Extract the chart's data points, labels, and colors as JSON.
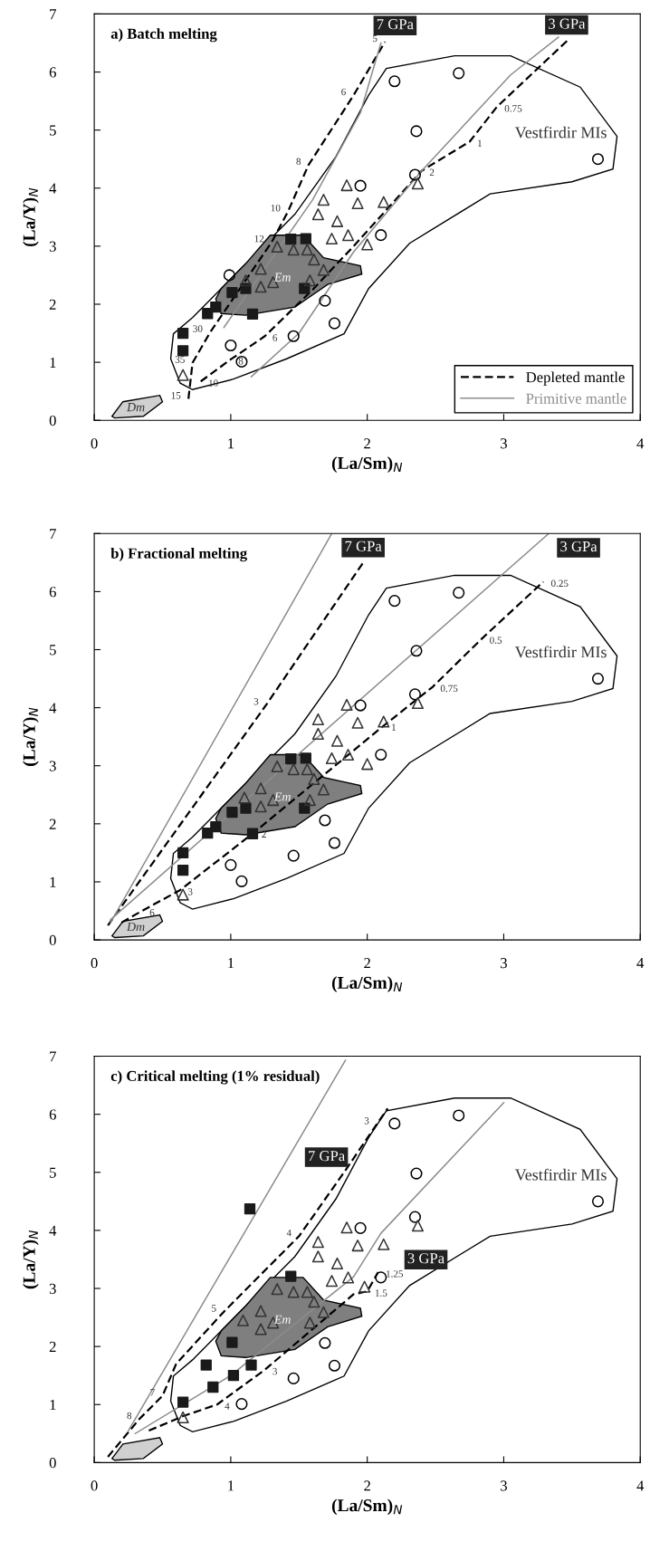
{
  "chart_data": [
    {
      "type": "scatter",
      "title": "a) Batch melting",
      "xlabel": "(La/Sm)$_{N}$",
      "ylabel": "(La/Y)$_{N}$",
      "xlim": [
        0,
        4
      ],
      "ylim": [
        0,
        7
      ],
      "xticks": [
        0,
        1,
        2,
        3,
        4
      ],
      "yticks": [
        0,
        1,
        2,
        3,
        4,
        5,
        6,
        7
      ],
      "legend": "bottom right",
      "series": [
        {
          "type": "area",
          "name": "Vestfirdir MIs",
          "color": "#ffffff",
          "x": [
            0.63,
            0.56,
            0.58,
            0.72,
            1.17,
            1.47,
            1.77,
            2.01,
            2.14,
            2.64,
            3.05,
            3.56,
            3.83,
            3.8,
            3.5,
            2.9,
            2.31,
            2.01,
            1.83,
            1.41,
            1.02,
            0.72,
            0.63
          ],
          "values": [
            0.64,
            1.06,
            1.49,
            1.77,
            2.84,
            3.55,
            4.54,
            5.6,
            6.06,
            6.28,
            6.28,
            5.74,
            4.89,
            4.33,
            4.11,
            3.9,
            3.05,
            2.27,
            1.49,
            1.06,
            0.71,
            0.53,
            0.64
          ]
        },
        {
          "type": "area",
          "name": "Em",
          "color": "#7f7f7f",
          "x": [
            0.93,
            1.11,
            1.29,
            1.53,
            1.68,
            1.95,
            1.96,
            1.71,
            1.47,
            1.11,
            0.93,
            0.89,
            0.93
          ],
          "values": [
            2.27,
            2.7,
            3.19,
            3.19,
            2.8,
            2.66,
            2.52,
            2.34,
            1.95,
            1.81,
            1.84,
            2.09,
            2.27
          ]
        },
        {
          "type": "area",
          "name": "Dm",
          "color": "#d0d0d0",
          "x": [
            0.13,
            0.21,
            0.48,
            0.5,
            0.36,
            0.15,
            0.13
          ],
          "values": [
            0.07,
            0.32,
            0.43,
            0.32,
            0.07,
            0.04,
            0.07
          ]
        },
        {
          "type": "line",
          "name": "Depleted mantle",
          "color": "#000000",
          "line_style": "dashed",
          "x": [
            0.69,
            0.72,
            0.85,
            1.3,
            1.42,
            1.57,
            1.9,
            2.13
          ],
          "values": [
            0.37,
            0.99,
            1.52,
            3.07,
            3.6,
            4.4,
            5.6,
            6.52
          ]
        },
        {
          "type": "line",
          "color": "#000000",
          "line_style": "dashed",
          "x": [
            0.78,
            1.0,
            1.25,
            1.6,
            1.9,
            2.4,
            2.75,
            2.95,
            3.47
          ],
          "values": [
            0.67,
            1.05,
            1.45,
            2.25,
            3.0,
            4.3,
            4.8,
            5.4,
            6.55
          ]
        },
        {
          "type": "line",
          "name": "Primitive mantle",
          "color": "#8c8c8c",
          "line_style": "solid",
          "x": [
            0.95,
            1.6,
            1.95,
            2.1
          ],
          "values": [
            1.6,
            3.8,
            5.3,
            6.5
          ]
        },
        {
          "type": "line",
          "color": "#8c8c8c",
          "line_style": "solid",
          "x": [
            1.15,
            1.5,
            1.9,
            2.4,
            3.05,
            3.4
          ],
          "values": [
            0.75,
            1.5,
            2.9,
            4.3,
            5.95,
            6.6
          ]
        },
        {
          "type": "scatter",
          "marker": "circle",
          "color": "#000000",
          "x": [
            2.2,
            2.67,
            2.36,
            3.69,
            2.35,
            1.95,
            2.1,
            1.69,
            1.76,
            1.46,
            1.0,
            1.08,
            0.99
          ],
          "values": [
            5.84,
            5.98,
            4.98,
            4.5,
            4.23,
            4.04,
            3.19,
            2.06,
            1.67,
            1.45,
            1.29,
            1.01,
            2.5
          ]
        },
        {
          "type": "scatter",
          "marker": "triangle",
          "color": "#333333",
          "x": [
            1.85,
            1.93,
            2.12,
            1.68,
            1.64,
            1.78,
            1.74,
            1.86,
            2.0,
            2.37,
            1.34,
            1.46,
            1.56,
            1.61,
            1.68,
            1.22,
            1.31,
            1.22,
            1.11,
            1.58,
            0.65
          ],
          "values": [
            4.05,
            3.74,
            3.76,
            3.8,
            3.55,
            3.43,
            3.13,
            3.19,
            3.03,
            4.08,
            2.99,
            2.94,
            2.94,
            2.77,
            2.59,
            2.61,
            2.38,
            2.3,
            2.41,
            2.41,
            0.78
          ]
        },
        {
          "type": "scatter",
          "marker": "square",
          "color": "#1a1a1a",
          "x": [
            1.55,
            1.44,
            1.01,
            1.11,
            0.83,
            0.89,
            1.16,
            0.65,
            0.65,
            1.54
          ],
          "values": [
            3.13,
            3.12,
            2.2,
            2.27,
            1.84,
            1.95,
            1.83,
            1.5,
            1.2,
            2.27
          ]
        }
      ],
      "annotations": [
        {
          "text": "7 GPa",
          "x": 2.13,
          "y": 6.52
        },
        {
          "text": "3 GPa",
          "x": 3.47,
          "y": 6.55
        },
        {
          "text": "15",
          "x": 0.69,
          "y": 0.37
        },
        {
          "text": "35",
          "x": 0.72,
          "y": 0.99
        },
        {
          "text": "30",
          "x": 0.85,
          "y": 1.52
        },
        {
          "text": "12",
          "x": 1.3,
          "y": 3.07
        },
        {
          "text": "10",
          "x": 1.42,
          "y": 3.6
        },
        {
          "text": "8",
          "x": 1.57,
          "y": 4.4
        },
        {
          "text": "6",
          "x": 1.9,
          "y": 5.6
        },
        {
          "text": "5",
          "x": 2.13,
          "y": 6.52
        },
        {
          "text": "10",
          "x": 0.78,
          "y": 0.67
        },
        {
          "text": "8",
          "x": 1.0,
          "y": 1.05
        },
        {
          "text": "6",
          "x": 1.25,
          "y": 1.45
        },
        {
          "text": "2",
          "x": 2.4,
          "y": 4.3
        },
        {
          "text": "1",
          "x": 2.75,
          "y": 4.8
        },
        {
          "text": "0.75",
          "x": 2.95,
          "y": 5.4
        }
      ]
    },
    {
      "type": "scatter",
      "title": "b) Fractional melting",
      "xlabel": "(La/Sm)$_{N}$",
      "ylabel": "(La/Y)$_{N}$",
      "xlim": [
        0,
        4
      ],
      "ylim": [
        0,
        7
      ],
      "xticks": [
        0,
        1,
        2,
        3,
        4
      ],
      "yticks": [
        0,
        1,
        2,
        3,
        4,
        5,
        6,
        7
      ],
      "series": [
        {
          "type": "area",
          "name": "Vestfirdir MIs",
          "color": "#ffffff",
          "x": [
            0.63,
            0.56,
            0.58,
            0.72,
            1.17,
            1.47,
            1.77,
            2.01,
            2.14,
            2.64,
            3.05,
            3.56,
            3.83,
            3.8,
            3.5,
            2.9,
            2.31,
            2.01,
            1.83,
            1.41,
            1.02,
            0.72,
            0.63
          ],
          "values": [
            0.64,
            1.06,
            1.49,
            1.77,
            2.84,
            3.55,
            4.54,
            5.6,
            6.06,
            6.28,
            6.28,
            5.74,
            4.89,
            4.33,
            4.11,
            3.9,
            3.05,
            2.27,
            1.49,
            1.06,
            0.71,
            0.53,
            0.64
          ]
        },
        {
          "type": "area",
          "name": "Em",
          "color": "#7f7f7f",
          "x": [
            0.93,
            1.11,
            1.29,
            1.53,
            1.68,
            1.95,
            1.96,
            1.71,
            1.47,
            1.11,
            0.93,
            0.89,
            0.93
          ],
          "values": [
            2.27,
            2.7,
            3.19,
            3.19,
            2.8,
            2.66,
            2.52,
            2.34,
            1.95,
            1.81,
            1.84,
            2.09,
            2.27
          ]
        },
        {
          "type": "area",
          "name": "Dm",
          "color": "#d0d0d0",
          "x": [
            0.13,
            0.21,
            0.48,
            0.5,
            0.36,
            0.15,
            0.13
          ],
          "values": [
            0.07,
            0.32,
            0.43,
            0.32,
            0.07,
            0.04,
            0.07
          ]
        },
        {
          "type": "line",
          "color": "#000000",
          "line_style": "dashed",
          "x": [
            0.1,
            1.26,
            1.97
          ],
          "values": [
            0.25,
            4.05,
            6.5
          ]
        },
        {
          "type": "line",
          "color": "#000000",
          "line_style": "dashed",
          "x": [
            0.2,
            0.35,
            0.63,
            1.17,
            2.12,
            2.48,
            2.84,
            3.29
          ],
          "values": [
            0.3,
            0.5,
            0.86,
            1.85,
            3.69,
            4.36,
            5.19,
            6.17
          ]
        },
        {
          "type": "line",
          "color": "#8c8c8c",
          "line_style": "solid",
          "x": [
            0.12,
            1.74
          ],
          "values": [
            0.3,
            7.0
          ]
        },
        {
          "type": "line",
          "color": "#8c8c8c",
          "line_style": "solid",
          "x": [
            0.12,
            3.33
          ],
          "values": [
            0.35,
            7.0
          ]
        },
        {
          "type": "scatter",
          "marker": "circle",
          "color": "#000000",
          "x": [
            2.2,
            2.67,
            2.36,
            3.69,
            2.35,
            1.95,
            2.1,
            1.69,
            1.76,
            1.46,
            1.0,
            1.08
          ],
          "values": [
            5.84,
            5.98,
            4.98,
            4.5,
            4.23,
            4.04,
            3.19,
            2.06,
            1.67,
            1.45,
            1.29,
            1.01
          ]
        },
        {
          "type": "scatter",
          "marker": "triangle",
          "color": "#333333",
          "x": [
            1.85,
            1.93,
            2.12,
            1.64,
            1.64,
            1.78,
            1.74,
            1.86,
            2.0,
            2.37,
            1.34,
            1.46,
            1.56,
            1.61,
            1.68,
            1.22,
            1.31,
            1.22,
            1.1,
            1.58,
            0.65
          ],
          "values": [
            4.05,
            3.74,
            3.76,
            3.8,
            3.55,
            3.43,
            3.13,
            3.19,
            3.03,
            4.08,
            2.99,
            2.94,
            2.94,
            2.77,
            2.59,
            2.61,
            2.41,
            2.3,
            2.45,
            2.41,
            0.78
          ]
        },
        {
          "type": "scatter",
          "marker": "square",
          "color": "#1a1a1a",
          "x": [
            1.55,
            1.44,
            1.01,
            1.11,
            0.83,
            0.89,
            1.16,
            0.65,
            0.65,
            1.54
          ],
          "values": [
            3.13,
            3.12,
            2.2,
            2.27,
            1.84,
            1.95,
            1.83,
            1.5,
            1.2,
            2.27
          ]
        }
      ],
      "annotations": [
        {
          "text": "7 GPa",
          "x": 1.97,
          "y": 6.5
        },
        {
          "text": "3 GPa",
          "x": 3.29,
          "y": 6.17
        },
        {
          "text": "3",
          "x": 1.26,
          "y": 4.05
        },
        {
          "text": "6",
          "x": 0.35,
          "y": 0.5
        },
        {
          "text": "3",
          "x": 0.63,
          "y": 0.86
        },
        {
          "text": "2",
          "x": 1.17,
          "y": 1.85
        },
        {
          "text": "1",
          "x": 2.12,
          "y": 3.69
        },
        {
          "text": "0.75",
          "x": 2.48,
          "y": 4.36
        },
        {
          "text": "0.5",
          "x": 2.84,
          "y": 5.19
        },
        {
          "text": "0.25",
          "x": 3.29,
          "y": 6.17
        }
      ]
    },
    {
      "type": "scatter",
      "title": "c) Critical melting (1% residual)",
      "xlabel": "(La/Sm)$_{N}$",
      "ylabel": "(La/Y)$_{N}$",
      "xlim": [
        0,
        4
      ],
      "ylim": [
        0,
        7
      ],
      "xticks": [
        0,
        1,
        2,
        3,
        4
      ],
      "yticks": [
        0,
        1,
        2,
        3,
        4,
        5,
        6,
        7
      ],
      "series": [
        {
          "type": "area",
          "name": "Vestfirdir MIs",
          "color": "#ffffff",
          "x": [
            0.63,
            0.56,
            0.58,
            0.72,
            1.17,
            1.47,
            1.77,
            2.01,
            2.14,
            2.64,
            3.05,
            3.56,
            3.83,
            3.8,
            3.5,
            2.9,
            2.31,
            2.01,
            1.83,
            1.41,
            1.02,
            0.72,
            0.63
          ],
          "values": [
            0.64,
            1.06,
            1.49,
            1.77,
            2.84,
            3.55,
            4.54,
            5.6,
            6.06,
            6.28,
            6.28,
            5.74,
            4.89,
            4.33,
            4.11,
            3.9,
            3.05,
            2.27,
            1.49,
            1.06,
            0.71,
            0.53,
            0.64
          ]
        },
        {
          "type": "area",
          "name": "Em",
          "color": "#7f7f7f",
          "x": [
            0.93,
            1.11,
            1.29,
            1.53,
            1.68,
            1.95,
            1.96,
            1.71,
            1.47,
            1.11,
            0.93,
            0.89,
            0.93
          ],
          "values": [
            2.27,
            2.7,
            3.19,
            3.19,
            2.8,
            2.66,
            2.52,
            2.34,
            1.95,
            1.81,
            1.84,
            2.09,
            2.27
          ]
        },
        {
          "type": "area",
          "color": "#d0d0d0",
          "x": [
            0.13,
            0.21,
            0.48,
            0.5,
            0.36,
            0.15,
            0.13
          ],
          "values": [
            0.07,
            0.32,
            0.43,
            0.32,
            0.07,
            0.04,
            0.07
          ]
        },
        {
          "type": "line",
          "color": "#000000",
          "line_style": "dashed",
          "x": [
            0.1,
            0.33,
            0.5,
            0.6,
            0.95,
            1.5,
            1.83,
            2.07,
            2.15
          ],
          "values": [
            0.1,
            0.75,
            1.15,
            1.7,
            2.6,
            3.9,
            5.0,
            5.83,
            6.1
          ]
        },
        {
          "type": "line",
          "color": "#000000",
          "line_style": "dashed",
          "x": [
            0.4,
            0.65,
            0.9,
            1.25,
            1.9,
            2.0,
            2.08
          ],
          "values": [
            0.55,
            0.8,
            1.0,
            1.6,
            2.9,
            2.95,
            3.28
          ]
        },
        {
          "type": "line",
          "color": "#8c8c8c",
          "line_style": "solid",
          "x": [
            0.25,
            1.84
          ],
          "values": [
            0.55,
            6.93
          ]
        },
        {
          "type": "line",
          "color": "#8c8c8c",
          "line_style": "solid",
          "x": [
            0.3,
            1.0,
            1.9,
            2.1,
            3.0
          ],
          "values": [
            0.5,
            1.5,
            3.2,
            3.95,
            6.2
          ]
        },
        {
          "type": "scatter",
          "marker": "circle",
          "color": "#000000",
          "x": [
            2.2,
            2.67,
            2.36,
            3.69,
            2.35,
            1.95,
            2.1,
            1.69,
            1.76,
            1.46,
            1.08
          ],
          "values": [
            5.84,
            5.98,
            4.98,
            4.5,
            4.23,
            4.04,
            3.19,
            2.06,
            1.67,
            1.45,
            1.01
          ]
        },
        {
          "type": "scatter",
          "marker": "triangle",
          "color": "#333333",
          "x": [
            1.85,
            1.93,
            2.12,
            1.64,
            1.64,
            1.78,
            1.74,
            1.86,
            1.98,
            2.37,
            1.34,
            1.46,
            1.56,
            1.61,
            1.68,
            1.22,
            1.31,
            1.22,
            1.09,
            1.58,
            0.65
          ],
          "values": [
            4.05,
            3.74,
            3.76,
            3.8,
            3.55,
            3.43,
            3.13,
            3.19,
            3.03,
            4.08,
            2.99,
            2.94,
            2.94,
            2.77,
            2.59,
            2.61,
            2.41,
            2.3,
            2.45,
            2.41,
            0.78
          ]
        },
        {
          "type": "scatter",
          "marker": "square",
          "color": "#1a1a1a",
          "x": [
            1.14,
            1.44,
            1.01,
            0.82,
            1.15,
            0.87,
            1.02,
            0.65
          ],
          "values": [
            4.37,
            3.21,
            2.07,
            1.68,
            1.68,
            1.3,
            1.5,
            1.04
          ]
        }
      ],
      "annotations": [
        {
          "text": "7 GPa",
          "x": 1.83,
          "y": 5.0
        },
        {
          "text": "3 GPa",
          "x": 2.08,
          "y": 3.28
        },
        {
          "text": "8",
          "x": 0.33,
          "y": 0.75
        },
        {
          "text": "7",
          "x": 0.5,
          "y": 1.15
        },
        {
          "text": "5",
          "x": 0.95,
          "y": 2.6
        },
        {
          "text": "4",
          "x": 1.5,
          "y": 3.9
        },
        {
          "text": "3",
          "x": 2.07,
          "y": 5.83
        },
        {
          "text": "4",
          "x": 0.9,
          "y": 1.0
        },
        {
          "text": "3",
          "x": 1.25,
          "y": 1.6
        },
        {
          "text": "1.5",
          "x": 2.0,
          "y": 2.95
        },
        {
          "text": "1.25",
          "x": 2.08,
          "y": 3.28
        }
      ]
    }
  ]
}
